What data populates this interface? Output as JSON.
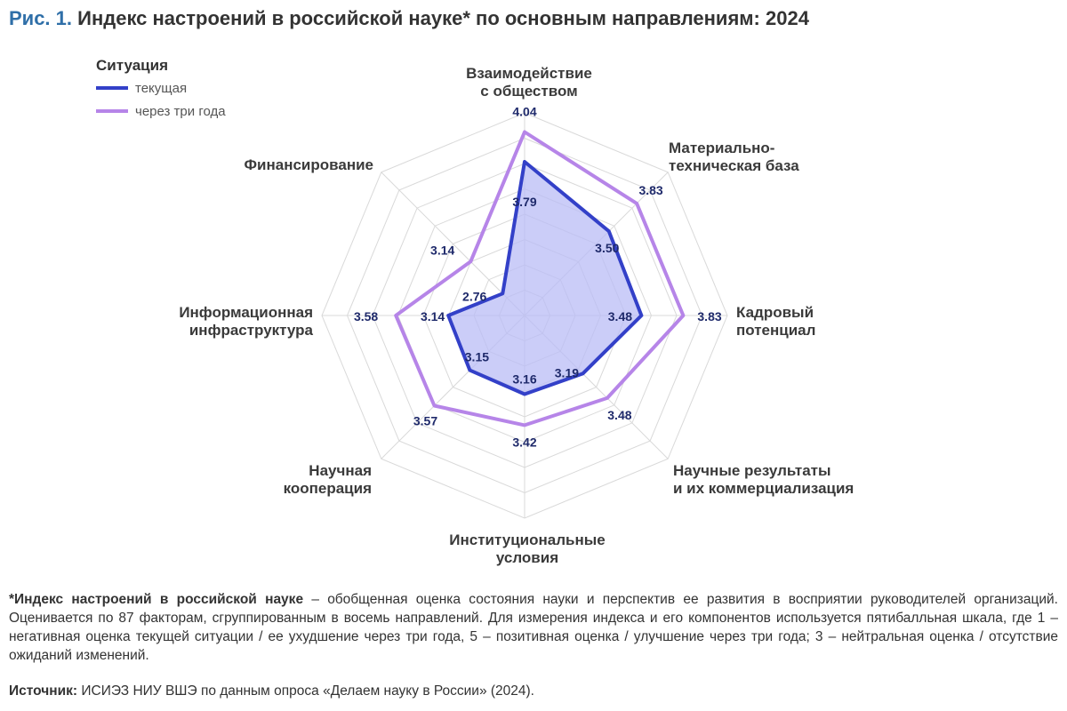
{
  "title": {
    "prefix": "Рис. 1.",
    "text": "Индекс настроений в российской науке* по основным направлениям: 2024"
  },
  "colors": {
    "current": "#3340c8",
    "current_fill": "#b9bcf5",
    "future": "#b685e8",
    "grid": "#d9d9d9",
    "title_accent": "#2f6fa8"
  },
  "chart_data": {
    "type": "radar",
    "axes": [
      [
        "Взаимодействие",
        "с обществом"
      ],
      [
        "Материально-",
        "техническая база"
      ],
      [
        "Кадровый",
        "потенциал"
      ],
      [
        "Научные результаты",
        "и их коммерциализация"
      ],
      [
        "Институциональные",
        "условия"
      ],
      [
        "Научная",
        "кооперация"
      ],
      [
        "Информационная",
        "инфраструктура"
      ],
      [
        "Финансирование"
      ]
    ],
    "legend_title": "Ситуация",
    "series": [
      {
        "name": "текущая",
        "values": [
          3.79,
          3.5,
          3.48,
          3.19,
          3.16,
          3.15,
          3.14,
          2.76
        ]
      },
      {
        "name": "через три года",
        "values": [
          4.04,
          3.83,
          3.83,
          3.48,
          3.42,
          3.57,
          3.58,
          3.14
        ]
      }
    ],
    "rlim": [
      2.5,
      4.2
    ],
    "grid": true
  },
  "footnote": {
    "bold": "*Индекс настроений в российской науке",
    "text": " – обобщенная оценка состояния науки и перспектив ее развития в восприятии руководителей организаций. Оценивается по 87 факторам, сгруппированным в восемь направлений. Для измерения индекса и его компонентов используется пятибалльная шкала, где 1 – негативная оценка текущей ситуации / ее ухудшение через три года, 5 – позитивная оценка / улучшение через три года; 3 – нейтральная оценка / отсутствие ожиданий изменений."
  },
  "source": {
    "bold": "Источник:",
    "text": " ИСИЭЗ НИУ ВШЭ по данным опроса «Делаем науку в России» (2024)."
  }
}
